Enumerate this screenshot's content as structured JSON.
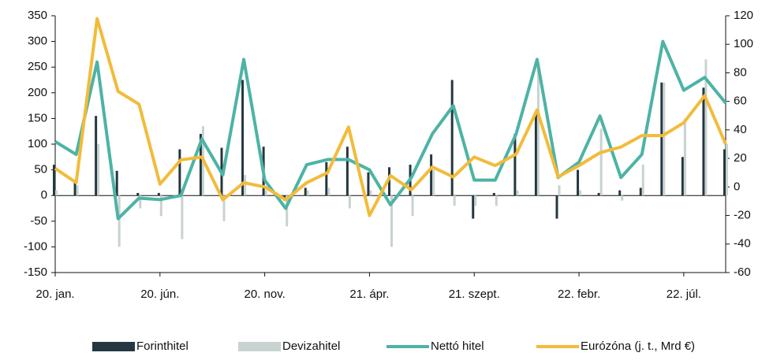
{
  "chart_data": {
    "type": "bar-line",
    "categories": [
      "20. jan.",
      null,
      null,
      null,
      null,
      "20. jún.",
      null,
      null,
      null,
      null,
      "20. nov.",
      null,
      null,
      null,
      null,
      "21. ápr.",
      null,
      null,
      null,
      null,
      "21. szept.",
      null,
      null,
      null,
      null,
      "22. febr.",
      null,
      null,
      null,
      null,
      "22. júl.",
      null,
      null
    ],
    "series": [
      {
        "name": "Forinthitel",
        "color": "#253740",
        "kind": "bar",
        "values": [
          60,
          30,
          155,
          48,
          5,
          5,
          90,
          120,
          93,
          225,
          95,
          -10,
          15,
          65,
          95,
          45,
          55,
          60,
          80,
          225,
          -45,
          5,
          120,
          160,
          -45,
          50,
          5,
          10,
          15,
          220,
          75,
          210,
          90
        ]
      },
      {
        "name": "Devizahitel",
        "color": "#c8d3d1",
        "kind": "bar",
        "values": [
          10,
          20,
          100,
          -100,
          -25,
          -40,
          -85,
          135,
          -50,
          40,
          10,
          -60,
          10,
          15,
          -25,
          10,
          -100,
          -40,
          50,
          -20,
          -20,
          -20,
          10,
          250,
          20,
          10,
          130,
          -10,
          60,
          220,
          150,
          265,
          100
        ]
      },
      {
        "name": "Nettó hitel",
        "color": "#4db3a5",
        "kind": "line",
        "values": [
          105,
          80,
          260,
          -45,
          -5,
          -8,
          0,
          110,
          40,
          265,
          30,
          -25,
          60,
          70,
          70,
          50,
          -18,
          35,
          120,
          175,
          30,
          30,
          120,
          265,
          35,
          65,
          155,
          35,
          80,
          300,
          205,
          230,
          180
        ]
      },
      {
        "name": "Eurózóna (j. t., Mrd €)",
        "color": "#f2bb3a",
        "kind": "line",
        "axis": "y2",
        "values": [
          13,
          3,
          118,
          67,
          58,
          2,
          19,
          21,
          -9,
          3,
          0,
          -9,
          3,
          10,
          42,
          -20,
          8,
          -2,
          14,
          7,
          21,
          15,
          23,
          54,
          7,
          15,
          24,
          28,
          36,
          36,
          45,
          64,
          30
        ]
      }
    ],
    "ylim": [
      -150,
      350
    ],
    "yticks": [
      -150,
      -100,
      -50,
      0,
      50,
      100,
      150,
      200,
      250,
      300,
      350
    ],
    "y2lim": [
      -60,
      120
    ],
    "y2ticks": [
      -60,
      -40,
      -20,
      0,
      20,
      40,
      60,
      80,
      100,
      120
    ],
    "legend": "bottom"
  }
}
